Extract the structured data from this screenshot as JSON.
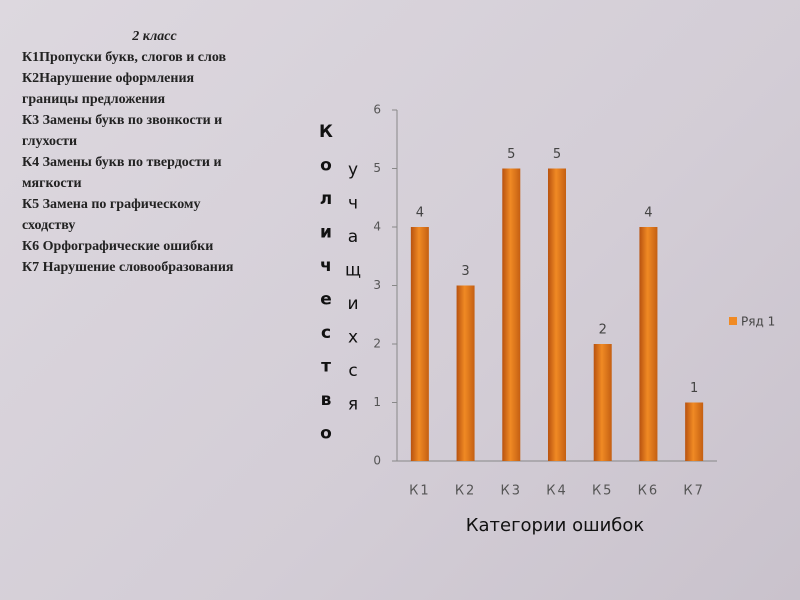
{
  "text_panel": {
    "title": "2 класс",
    "lines": [
      "К1Пропуски букв, слогов и слов",
      "К2Нарушение оформления",
      "границы предложения",
      "К3  Замены букв по звонкости и",
      "глухости",
      "К4 Замены букв по твердости и",
      "мягкости",
      "К5 Замена по графическому",
      "сходству",
      "К6 Орфографические ошибки",
      "К7 Нарушение словообразования"
    ]
  },
  "chart_data": {
    "type": "bar",
    "categories": [
      "К1",
      "К2",
      "К3",
      "К4",
      "К5",
      "К6",
      "К7"
    ],
    "series": [
      {
        "name": "Ряд 1",
        "color": "#f08a24",
        "values": [
          4,
          3,
          5,
          5,
          2,
          4,
          1
        ]
      }
    ],
    "ylim": [
      0,
      6
    ],
    "yticks": [
      0,
      1,
      2,
      3,
      4,
      5,
      6
    ],
    "x_label": "Категории ошибок",
    "y_label": [
      "Количество",
      "учащихся"
    ],
    "data_labels": true,
    "legend": "right"
  }
}
